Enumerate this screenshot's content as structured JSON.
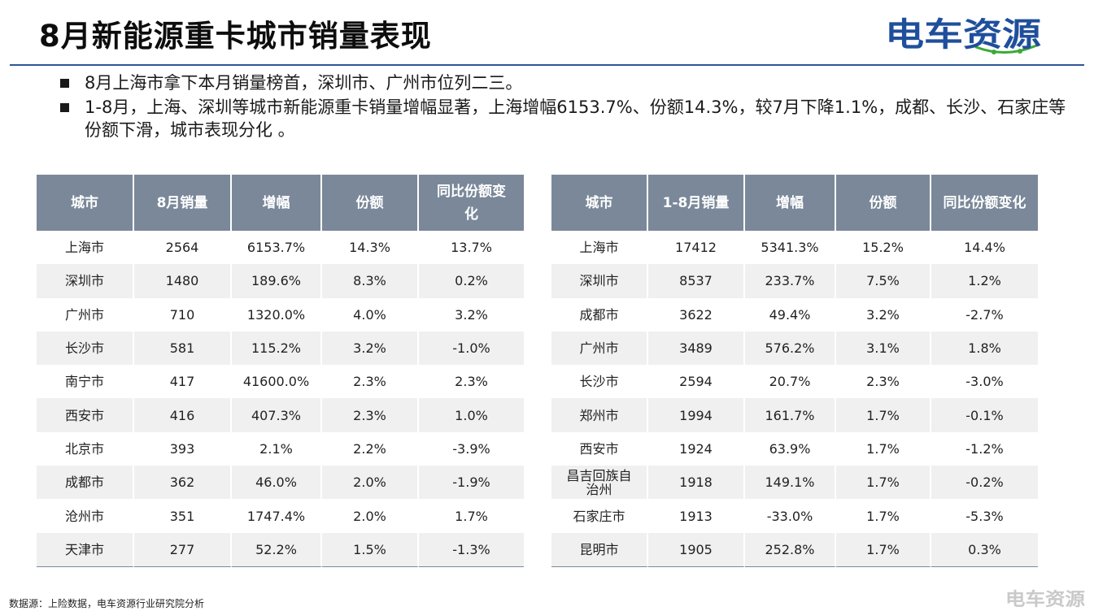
{
  "title": "8月新能源重卡城市销量表现",
  "logo_text": "电车资源",
  "colors": {
    "header_bg": "#7a8899",
    "rule": "#2e5597",
    "logo_blue": "#1f4f9c",
    "logo_green": "#3aa935"
  },
  "bullets": [
    "8月上海市拿下本月销量榜首，深圳市、广州市位列二三。",
    "1-8月，上海、深圳等城市新能源重卡销量增幅显著，上海增幅6153.7%、份额14.3%，较7月下降1.1%，成都、长沙、石家庄等份额下滑，城市表现分化 。"
  ],
  "table_monthly": {
    "headers": [
      "城市",
      "8月销量",
      "增幅",
      "份额",
      "同比份额变化"
    ],
    "rows": [
      [
        "上海市",
        "2564",
        "6153.7%",
        "14.3%",
        "13.7%"
      ],
      [
        "深圳市",
        "1480",
        "189.6%",
        "8.3%",
        "0.2%"
      ],
      [
        "广州市",
        "710",
        "1320.0%",
        "4.0%",
        "3.2%"
      ],
      [
        "长沙市",
        "581",
        "115.2%",
        "3.2%",
        "-1.0%"
      ],
      [
        "南宁市",
        "417",
        "41600.0%",
        "2.3%",
        "2.3%"
      ],
      [
        "西安市",
        "416",
        "407.3%",
        "2.3%",
        "1.0%"
      ],
      [
        "北京市",
        "393",
        "2.1%",
        "2.2%",
        "-3.9%"
      ],
      [
        "成都市",
        "362",
        "46.0%",
        "2.0%",
        "-1.9%"
      ],
      [
        "沧州市",
        "351",
        "1747.4%",
        "2.0%",
        "1.7%"
      ],
      [
        "天津市",
        "277",
        "52.2%",
        "1.5%",
        "-1.3%"
      ]
    ]
  },
  "table_ytd": {
    "headers": [
      "城市",
      "1-8月销量",
      "增幅",
      "份额",
      "同比份额变化"
    ],
    "rows": [
      [
        "上海市",
        "17412",
        "5341.3%",
        "15.2%",
        "14.4%"
      ],
      [
        "深圳市",
        "8537",
        "233.7%",
        "7.5%",
        "1.2%"
      ],
      [
        "成都市",
        "3622",
        "49.4%",
        "3.2%",
        "-2.7%"
      ],
      [
        "广州市",
        "3489",
        "576.2%",
        "3.1%",
        "1.8%"
      ],
      [
        "长沙市",
        "2594",
        "20.7%",
        "2.3%",
        "-3.0%"
      ],
      [
        "郑州市",
        "1994",
        "161.7%",
        "1.7%",
        "-0.1%"
      ],
      [
        "西安市",
        "1924",
        "63.9%",
        "1.7%",
        "-1.2%"
      ],
      [
        "昌吉回族自治州",
        "1918",
        "149.1%",
        "1.7%",
        "-0.2%"
      ],
      [
        "石家庄市",
        "1913",
        "-33.0%",
        "1.7%",
        "-5.3%"
      ],
      [
        "昆明市",
        "1905",
        "252.8%",
        "1.7%",
        "0.3%"
      ]
    ]
  },
  "footnote": "数据源：上险数据，电车资源行业研究院分析",
  "watermark_text": "电车资源"
}
